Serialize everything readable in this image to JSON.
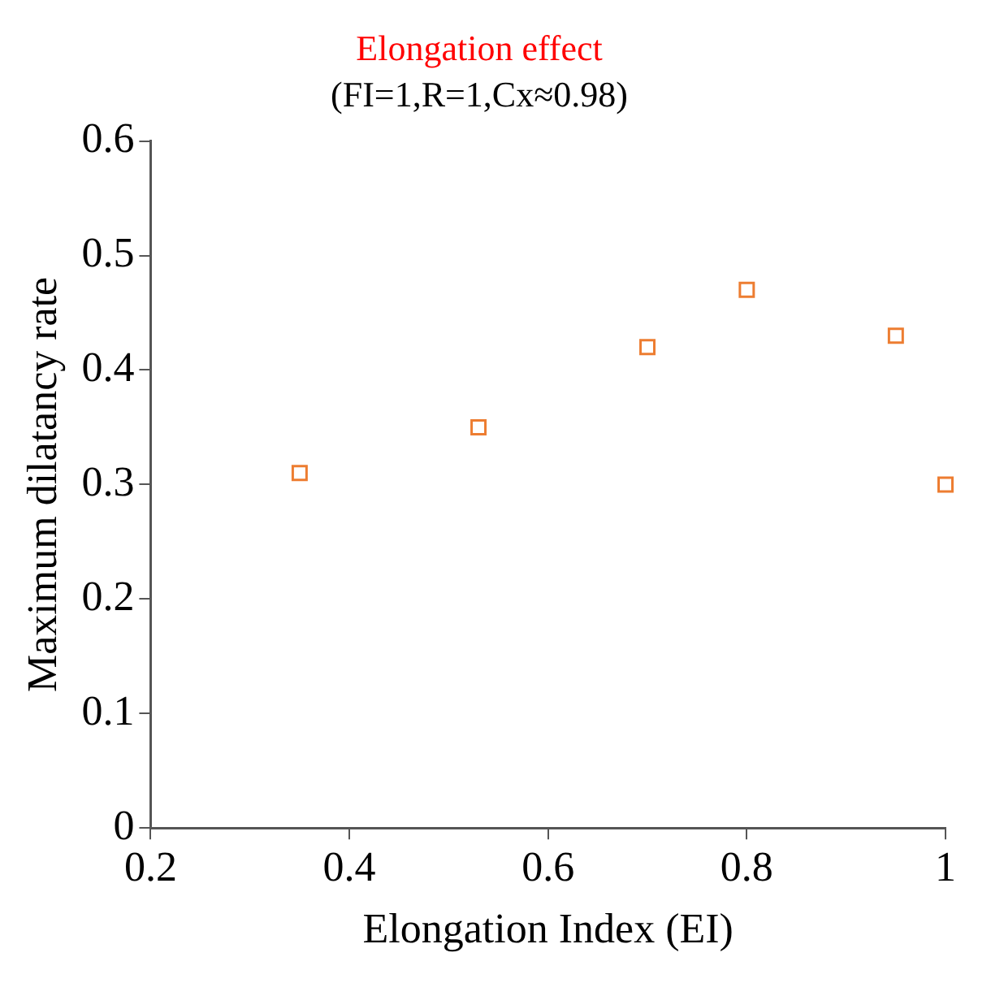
{
  "chart_data": {
    "type": "scatter",
    "title": "Elongation effect",
    "subtitle": "(FI=1,R=1,Cx≈0.98)",
    "xlabel": "Elongation Index (EI)",
    "ylabel": "Maximum dilatancy rate",
    "x": [
      0.35,
      0.53,
      0.7,
      0.8,
      0.95,
      1.0
    ],
    "series": [
      {
        "color": "#ed7d31",
        "values": [
          0.31,
          0.35,
          0.42,
          0.47,
          0.43,
          0.3
        ]
      }
    ],
    "xlim": [
      0.2,
      1
    ],
    "xticks": [
      0.2,
      0.4,
      0.6,
      0.8,
      1
    ],
    "ylim": [
      0,
      0.6
    ],
    "yticks": [
      0,
      0.1,
      0.2,
      0.3,
      0.4,
      0.5,
      0.6
    ],
    "marker": "square",
    "legend": false
  }
}
